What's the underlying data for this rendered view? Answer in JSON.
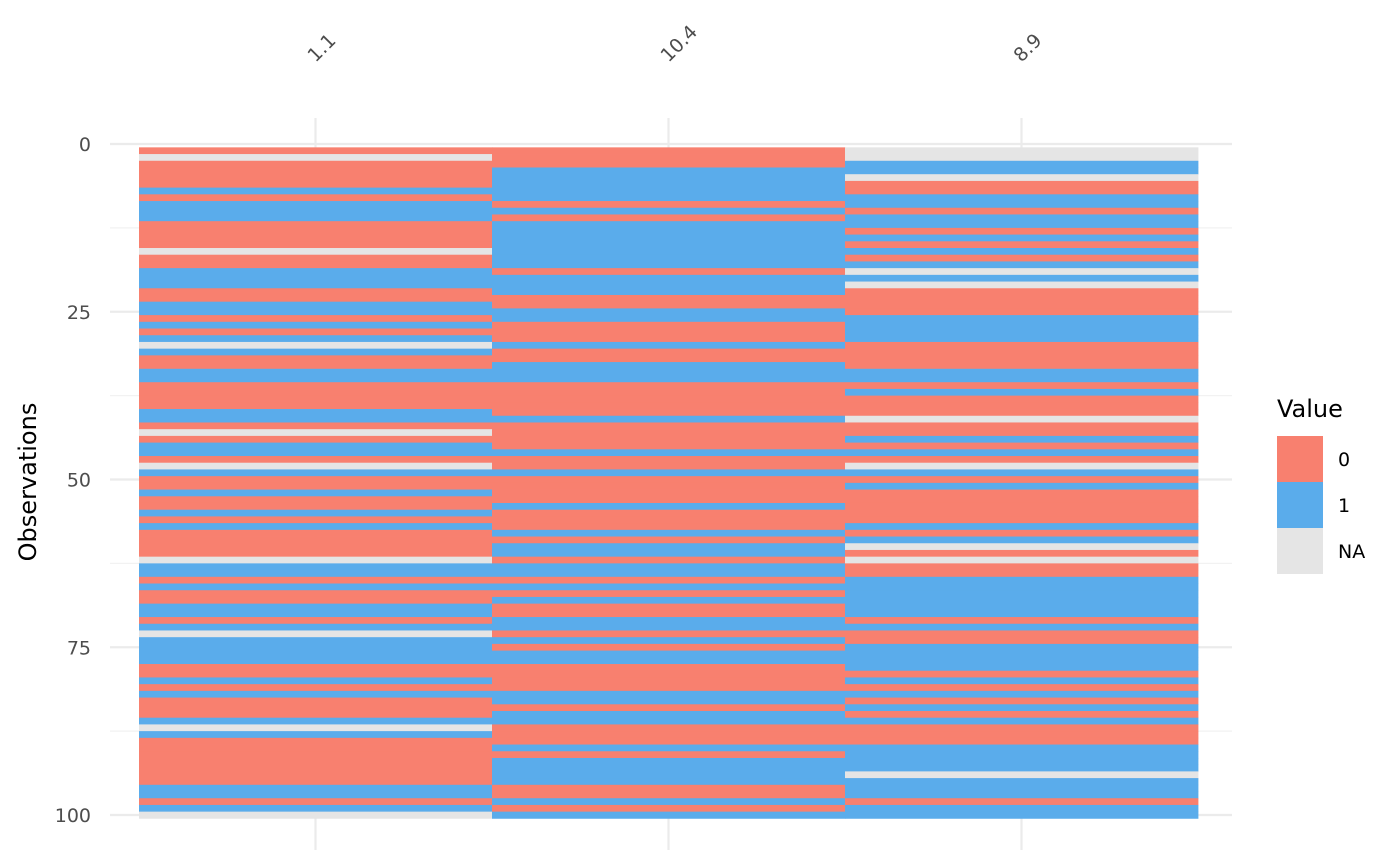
{
  "chart_data": {
    "type": "heatmap",
    "ylabel": "Observations",
    "columns": [
      "1.1",
      "10.4",
      "8.9"
    ],
    "ylim": [
      0,
      100
    ],
    "y_ticks": [
      0,
      25,
      50,
      75,
      100
    ],
    "legend": {
      "title": "Value",
      "position": "right",
      "entries": [
        {
          "label": "0",
          "color": "#F8806F"
        },
        {
          "label": "1",
          "color": "#5AACEB"
        },
        {
          "label": "NA",
          "color": "#E5E5E5"
        }
      ]
    },
    "values": [
      [
        "0",
        "NA",
        "0",
        "0",
        "0",
        "0",
        "1",
        "0",
        "1",
        "1",
        "1",
        "0",
        "0",
        "0",
        "0",
        "NA",
        "0",
        "0",
        "1",
        "1",
        "1",
        "0",
        "0",
        "1",
        "1",
        "0",
        "1",
        "0",
        "1",
        "NA",
        "1",
        "0",
        "0",
        "1",
        "1",
        "0",
        "0",
        "0",
        "0",
        "1",
        "1",
        "0",
        "NA",
        "0",
        "1",
        "1",
        "0",
        "NA",
        "1",
        "0",
        "0",
        "1",
        "0",
        "0",
        "1",
        "0",
        "1",
        "0",
        "0",
        "0",
        "0",
        "NA",
        "1",
        "1",
        "0",
        "1",
        "0",
        "0",
        "1",
        "1",
        "0",
        "1",
        "NA",
        "1",
        "1",
        "1",
        "1",
        "0",
        "0",
        "1",
        "0",
        "1",
        "0",
        "0",
        "0",
        "1",
        "NA",
        "1",
        "0",
        "0",
        "0",
        "0",
        "0",
        "0",
        "0",
        "1",
        "1",
        "0",
        "1",
        "NA"
      ],
      [
        "0",
        "0",
        "0",
        "1",
        "1",
        "1",
        "1",
        "1",
        "0",
        "1",
        "0",
        "1",
        "1",
        "1",
        "1",
        "1",
        "1",
        "1",
        "0",
        "1",
        "1",
        "1",
        "0",
        "0",
        "1",
        "1",
        "0",
        "0",
        "0",
        "1",
        "0",
        "0",
        "1",
        "1",
        "1",
        "0",
        "0",
        "0",
        "0",
        "0",
        "1",
        "0",
        "0",
        "0",
        "0",
        "1",
        "0",
        "0",
        "1",
        "0",
        "0",
        "0",
        "0",
        "1",
        "0",
        "0",
        "0",
        "1",
        "0",
        "1",
        "1",
        "0",
        "1",
        "1",
        "0",
        "1",
        "0",
        "1",
        "0",
        "0",
        "1",
        "1",
        "0",
        "1",
        "0",
        "1",
        "1",
        "0",
        "0",
        "0",
        "0",
        "1",
        "1",
        "0",
        "1",
        "1",
        "0",
        "0",
        "0",
        "1",
        "0",
        "1",
        "1",
        "1",
        "1",
        "0",
        "0",
        "1",
        "0",
        "1"
      ],
      [
        "NA",
        "NA",
        "1",
        "1",
        "NA",
        "0",
        "0",
        "1",
        "1",
        "0",
        "1",
        "1",
        "0",
        "1",
        "0",
        "1",
        "0",
        "1",
        "NA",
        "1",
        "NA",
        "0",
        "0",
        "0",
        "0",
        "1",
        "1",
        "1",
        "1",
        "0",
        "0",
        "0",
        "0",
        "1",
        "1",
        "0",
        "1",
        "0",
        "0",
        "0",
        "NA",
        "0",
        "0",
        "1",
        "0",
        "1",
        "0",
        "NA",
        "1",
        "0",
        "1",
        "0",
        "0",
        "0",
        "0",
        "0",
        "1",
        "0",
        "1",
        "NA",
        "0",
        "NA",
        "0",
        "0",
        "1",
        "1",
        "1",
        "1",
        "1",
        "1",
        "0",
        "1",
        "0",
        "0",
        "1",
        "1",
        "1",
        "1",
        "0",
        "1",
        "0",
        "1",
        "0",
        "1",
        "0",
        "1",
        "0",
        "0",
        "0",
        "1",
        "1",
        "1",
        "1",
        "NA",
        "1",
        "1",
        "1",
        "0",
        "1",
        "1"
      ]
    ]
  }
}
